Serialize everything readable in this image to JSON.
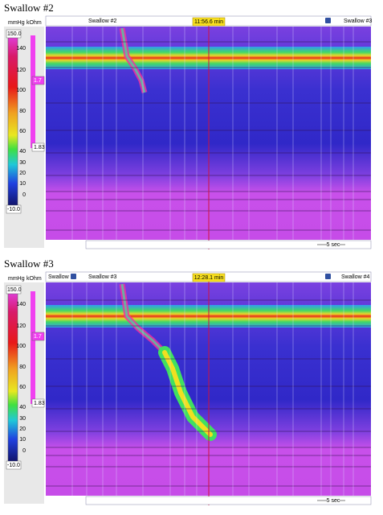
{
  "panels": [
    {
      "title": "Swallow #2",
      "pressure_unit": "mmHg",
      "impedance_unit": "kOhm",
      "pressure_scale": [
        "150.0",
        "140",
        "120",
        "100",
        "80",
        "60",
        "40",
        "30",
        "20",
        "10",
        "0",
        "-10.0"
      ],
      "impedance_marks": [
        "1.7",
        "1.83"
      ],
      "tabs": [
        "Swallow #2",
        "Swallow #3"
      ],
      "time": "11:56.6 min",
      "scale_bar": "5 sec"
    },
    {
      "title": "Swallow #3",
      "pressure_unit": "mmHg",
      "impedance_unit": "kOhm",
      "pressure_scale": [
        "150.0",
        "140",
        "120",
        "100",
        "80",
        "60",
        "40",
        "30",
        "20",
        "10",
        "0",
        "-10.0"
      ],
      "impedance_marks": [
        "1.7",
        "1.83"
      ],
      "tabs": [
        "Swallow",
        "Swallow #3",
        "Swallow #4"
      ],
      "time": "12:28.1 min",
      "scale_bar": "5 sec"
    }
  ]
}
